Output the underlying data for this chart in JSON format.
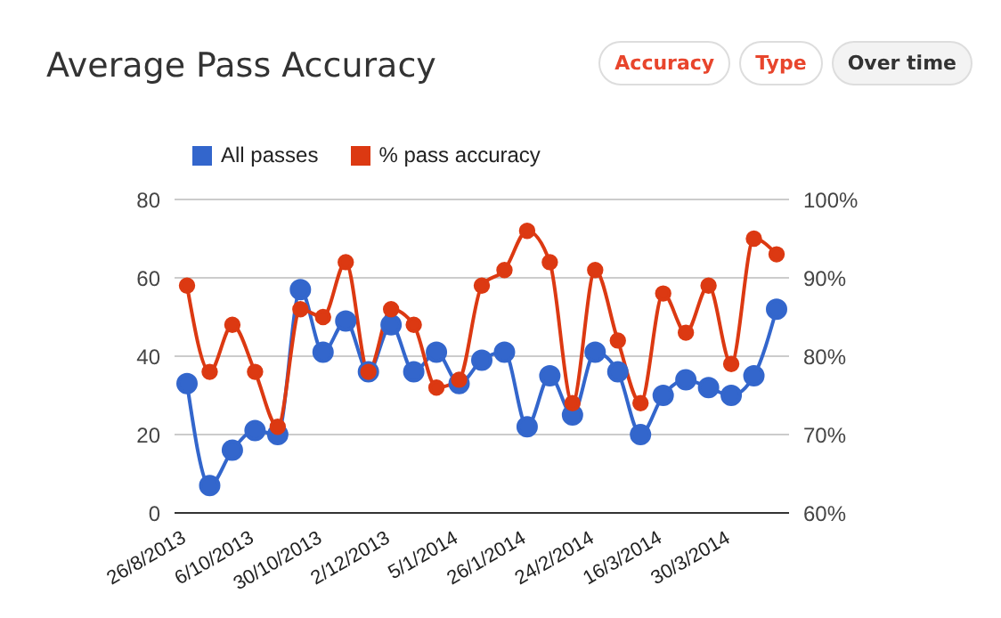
{
  "chart_data": {
    "type": "line",
    "title": "Average Pass Accuracy",
    "annotations": [
      "Accuracy",
      "Type",
      "Over time"
    ],
    "categories": [
      "26/8/2013",
      null,
      null,
      "6/10/2013",
      null,
      null,
      "30/10/2013",
      null,
      null,
      "2/12/2013",
      null,
      null,
      "5/1/2014",
      null,
      null,
      "26/1/2014",
      null,
      null,
      "24/2/2014",
      null,
      null,
      "16/3/2014",
      null,
      null,
      "30/3/2014",
      null,
      null
    ],
    "series": [
      {
        "name": "All passes",
        "color": "#3366cc",
        "values": [
          33,
          7,
          16,
          21,
          20,
          57,
          41,
          49,
          36,
          48,
          36,
          41,
          33,
          39,
          41,
          22,
          35,
          25,
          41,
          36,
          20,
          30,
          34,
          32,
          30,
          35,
          52
        ]
      },
      {
        "name": "% pass accuracy",
        "color": "#dc3912",
        "axis": "y2",
        "values": [
          89,
          78,
          84,
          78,
          71,
          86,
          85,
          92,
          78,
          86,
          84,
          76,
          77,
          89,
          91,
          96,
          92,
          74,
          91,
          82,
          74,
          88,
          83,
          89,
          79,
          95,
          93
        ]
      }
    ],
    "ylim": [
      0,
      80
    ],
    "yticks": [
      0,
      20,
      40,
      60,
      80
    ],
    "y2lim": [
      60,
      100
    ],
    "y2ticks": [
      {
        "value": 60,
        "label": "60%"
      },
      {
        "value": 70,
        "label": "70%"
      },
      {
        "value": 80,
        "label": "80%"
      },
      {
        "value": 90,
        "label": "90%"
      },
      {
        "value": 100,
        "label": "100%"
      }
    ],
    "grid": "y",
    "legend": "top left",
    "marker": "circle",
    "line_style": "solid"
  }
}
